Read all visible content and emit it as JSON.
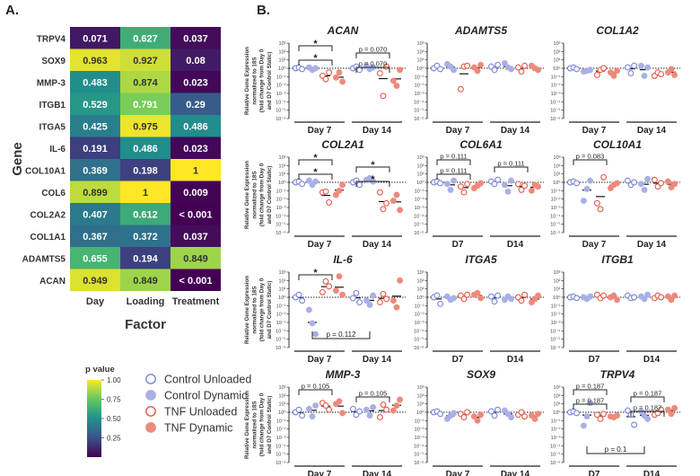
{
  "panel_a_label": "A.",
  "panel_b_label": "B.",
  "chart_data": [
    {
      "type": "heatmap",
      "panel": "A",
      "ylabel": "Gene",
      "xlabel": "Factor",
      "rows": [
        "TRPV4",
        "SOX9",
        "MMP-3",
        "ITGB1",
        "ITGA5",
        "IL-6",
        "COL10A1",
        "COL6",
        "COL2A2",
        "COL1A1",
        "ADAMTS5",
        "ACAN"
      ],
      "columns": [
        "Day",
        "Loading",
        "Treatment"
      ],
      "values": [
        [
          0.071,
          0.627,
          0.037
        ],
        [
          0.963,
          0.927,
          0.08
        ],
        [
          0.483,
          0.874,
          0.023
        ],
        [
          0.529,
          0.791,
          0.29
        ],
        [
          0.425,
          0.975,
          0.486
        ],
        [
          0.191,
          0.486,
          0.023
        ],
        [
          0.369,
          0.198,
          1
        ],
        [
          0.899,
          1,
          0.009
        ],
        [
          0.407,
          0.612,
          0.0005
        ],
        [
          0.367,
          0.372,
          0.037
        ],
        [
          0.655,
          0.194,
          0.849
        ],
        [
          0.949,
          0.849,
          0.0005
        ]
      ],
      "cell_labels": [
        [
          "0.071",
          "0.627",
          "0.037"
        ],
        [
          "0.963",
          "0.927",
          "0.08"
        ],
        [
          "0.483",
          "0.874",
          "0.023"
        ],
        [
          "0.529",
          "0.791",
          "0.29"
        ],
        [
          "0.425",
          "0.975",
          "0.486"
        ],
        [
          "0.191",
          "0.486",
          "0.023"
        ],
        [
          "0.369",
          "0.198",
          "1"
        ],
        [
          "0.899",
          "1",
          "0.009"
        ],
        [
          "0.407",
          "0.612",
          "< 0.001"
        ],
        [
          "0.367",
          "0.372",
          "0.037"
        ],
        [
          "0.655",
          "0.194",
          "0.849"
        ],
        [
          "0.949",
          "0.849",
          "< 0.001"
        ]
      ],
      "colorbar": {
        "title": "p value",
        "ticks": [
          "1.00",
          "0.75",
          "0.50",
          "0.25"
        ],
        "range": [
          0,
          1
        ]
      }
    },
    {
      "type": "scatter",
      "panel": "B",
      "ylabel_lines": [
        "Relative Gene Expression",
        "normalized to 18S",
        "(fold change from Day 0",
        "and D7 Control Static)"
      ],
      "y_scale": "log10",
      "y_range": [
        -6,
        3
      ],
      "y_tick_labels": [
        "10³",
        "10²",
        "10¹",
        "10⁰",
        "10⁻¹",
        "10⁻²",
        "10⁻³",
        "10⁻⁴",
        "10⁻⁵",
        "10⁻⁶"
      ],
      "legend": [
        {
          "name": "Control Unloaded",
          "color": "#7b83d6",
          "filled": false
        },
        {
          "name": "Control Dynamic",
          "color": "#a9b0e6",
          "filled": true
        },
        {
          "name": "TNF Unloaded",
          "color": "#e35a4a",
          "filled": false
        },
        {
          "name": "TNF Dynamic",
          "color": "#ee8a7c",
          "filled": true
        }
      ],
      "group_order": [
        "Control Unloaded",
        "Control Dynamic",
        "TNF Unloaded",
        "TNF Dynamic"
      ],
      "subplots": [
        {
          "gene": "ACAN",
          "timepoints": [
            "Day 7",
            "Day 14"
          ],
          "log10_values": [
            [
              [
                0,
                0.1,
                -0.1
              ],
              [
                0.1,
                -0.2,
                0
              ],
              [
                -0.9,
                -1.3,
                -0.5
              ],
              [
                -1.1,
                -0.5,
                -1.6
              ]
            ],
            [
              [
                0,
                0.2,
                -0.2
              ],
              [
                0.3,
                -0.1,
                0.1
              ],
              [
                -0.6,
                -3.3,
                0.2
              ],
              [
                -1.5,
                -2.1,
                -0.2
              ]
            ]
          ],
          "annotations": [
            {
              "text": "*"
            },
            {
              "text": "p = 0.070"
            },
            {
              "text": "*"
            },
            {
              "text": "p = 0.070"
            }
          ]
        },
        {
          "gene": "ADAMTS5",
          "timepoints": [
            "Day 7",
            "Day 14"
          ],
          "log10_values": [
            [
              [
                0,
                0.3,
                -0.1
              ],
              [
                0.5,
                0.2,
                -0.2
              ],
              [
                -2.5,
                0.2,
                0.3
              ],
              [
                0.1,
                -0.3,
                0.4
              ]
            ],
            [
              [
                0.2,
                -0.2,
                0.4
              ],
              [
                0.6,
                0.1,
                -0.1
              ],
              [
                0.1,
                -0.4,
                0.3
              ],
              [
                0.3,
                0,
                -0.2
              ]
            ]
          ],
          "annotations": []
        },
        {
          "gene": "COL1A2",
          "timepoints": [
            "Day 7",
            "Day 14"
          ],
          "log10_values": [
            [
              [
                0,
                0.1,
                -0.1
              ],
              [
                -0.4,
                -0.3,
                -0.2
              ],
              [
                -0.8,
                -0.2,
                0
              ],
              [
                -0.5,
                -0.9,
                -0.3
              ]
            ],
            [
              [
                0.1,
                -0.6,
                0.3
              ],
              [
                0.3,
                -0.9,
                0.1
              ],
              [
                -0.9,
                -0.5,
                -0.7
              ],
              [
                -0.5,
                -0.1,
                -0.8
              ]
            ]
          ],
          "annotations": []
        },
        {
          "gene": "COL2A1",
          "timepoints": [
            "Day 7",
            "Day 14"
          ],
          "log10_values": [
            [
              [
                0,
                0.1,
                -0.2
              ],
              [
                0.2,
                -0.3,
                0.1
              ],
              [
                -1.2,
                -1.1,
                -2.4
              ],
              [
                -1.5,
                -1,
                -0.3
              ]
            ],
            [
              [
                0,
                0.2,
                -0.3
              ],
              [
                0.3,
                0.5,
                0.1
              ],
              [
                -1.2,
                -3.2,
                -2.5
              ],
              [
                -2.2,
                -1.5,
                -3.3
              ]
            ]
          ],
          "annotations": [
            {
              "text": "*"
            },
            {
              "text": "*"
            },
            {
              "text": "*"
            },
            {
              "text": "*"
            }
          ]
        },
        {
          "gene": "COL6A1",
          "timepoints": [
            "D7",
            "D14"
          ],
          "log10_values": [
            [
              [
                0,
                0.1,
                -0.1
              ],
              [
                -0.2,
                -0.9,
                0.2
              ],
              [
                -0.5,
                -1.2,
                -0.2
              ],
              [
                -0.7,
                -0.4,
                -0.1
              ]
            ],
            [
              [
                0.1,
                -0.2,
                0.3
              ],
              [
                -0.3,
                -1.1,
                0.2
              ],
              [
                -0.2,
                -0.9,
                -0.4
              ],
              [
                -1,
                -0.3,
                -0.5
              ]
            ]
          ],
          "annotations": [
            {
              "text": "p = 0.111"
            },
            {
              "text": "p = 0.111"
            },
            {
              "text": "p = 0.111"
            }
          ]
        },
        {
          "gene": "COL10A1",
          "timepoints": [
            "Day 7",
            "Day 14"
          ],
          "log10_values": [
            [
              [
                0,
                0.1,
                -0.1
              ],
              [
                -2.2,
                -0.8,
                0.2
              ],
              [
                -2.5,
                -3.2,
                0.6
              ],
              [
                -0.7,
                -0.3,
                -0.1
              ]
            ],
            [
              [
                0.2,
                -0.3,
                0
              ],
              [
                -0.2,
                -0.9,
                0.4
              ],
              [
                0.3,
                -0.5,
                -0.1
              ],
              [
                0.1,
                -0.6,
                -0.2
              ]
            ]
          ],
          "annotations": [
            {
              "text": "p = 0.083"
            }
          ]
        },
        {
          "gene": "IL-6",
          "timepoints": [
            "Day 7",
            "Day 14"
          ],
          "log10_values": [
            [
              [
                0,
                0.3,
                -0.4
              ],
              [
                -1.5,
                -3.1,
                -4.4
              ],
              [
                0.6,
                1.9,
                1.3
              ],
              [
                0.8,
                2.5,
                0.3
              ]
            ],
            [
              [
                -0.1,
                0.5,
                -0.6
              ],
              [
                -0.4,
                -0.9,
                0.2
              ],
              [
                -0.6,
                0.4,
                -0.2
              ],
              [
                -0.4,
                -1.2,
                2
              ]
            ]
          ],
          "annotations": [
            {
              "text": "*"
            },
            {
              "text": "p = 0.112"
            }
          ]
        },
        {
          "gene": "ITGA5",
          "timepoints": [
            "D7",
            "D14"
          ],
          "log10_values": [
            [
              [
                0,
                0.2,
                -0.8
              ],
              [
                0.1,
                -0.3,
                -0.1
              ],
              [
                0.2,
                -0.2,
                0.3
              ],
              [
                0.3,
                0.5,
                -0.1
              ]
            ],
            [
              [
                0.1,
                -0.5,
                0.2
              ],
              [
                -0.3,
                0.1,
                -0.2
              ],
              [
                0,
                -0.4,
                0.3
              ],
              [
                -0.6,
                -0.2,
                0.2
              ]
            ]
          ],
          "annotations": []
        },
        {
          "gene": "ITGB1",
          "timepoints": [
            "D7",
            "D14"
          ],
          "log10_values": [
            [
              [
                0,
                0.1,
                -0.1
              ],
              [
                0,
                -0.2,
                0.1
              ],
              [
                0.3,
                -0.1,
                0.2
              ],
              [
                0,
                0.2,
                -0.3
              ]
            ],
            [
              [
                0.2,
                -0.1,
                0
              ],
              [
                0.1,
                -0.2,
                0.3
              ],
              [
                -0.1,
                0.2,
                0
              ],
              [
                0.1,
                -0.3,
                0.2
              ]
            ]
          ],
          "annotations": []
        },
        {
          "gene": "MMP-3",
          "timepoints": [
            "Day 7",
            "Day 14"
          ],
          "log10_values": [
            [
              [
                0,
                0.3,
                -0.4
              ],
              [
                0.4,
                -0.5,
                0.8
              ],
              [
                1.1,
                0.8,
                0.3
              ],
              [
                1,
                1.3,
                -0.1
              ]
            ],
            [
              [
                0.4,
                -0.3,
                0.1
              ],
              [
                0.3,
                -0.4,
                0.6
              ],
              [
                -0.6,
                0.9,
                0.3
              ],
              [
                0.2,
                0.8,
                1.5
              ]
            ]
          ],
          "annotations": [
            {
              "text": "p = 0.105"
            },
            {
              "text": "p = 0.105"
            }
          ]
        },
        {
          "gene": "SOX9",
          "timepoints": [
            "Day 7",
            "Day 14"
          ],
          "log10_values": [
            [
              [
                0,
                0.1,
                -0.2
              ],
              [
                -0.8,
                -0.4,
                -0.1
              ],
              [
                -0.2,
                -0.6,
                0
              ],
              [
                -0.5,
                -1,
                -0.3
              ]
            ],
            [
              [
                0.1,
                -0.4,
                0.3
              ],
              [
                0.2,
                -0.2,
                -0.6
              ],
              [
                -0.3,
                0,
                -0.5
              ],
              [
                -0.4,
                -0.8,
                -0.2
              ]
            ]
          ],
          "annotations": []
        },
        {
          "gene": "TRPV4",
          "timepoints": [
            "D7",
            "D14"
          ],
          "log10_values": [
            [
              [
                0,
                0.1,
                -0.1
              ],
              [
                -1.6,
                -0.5,
                1.1
              ],
              [
                -0.3,
                -0.8,
                -0.2
              ],
              [
                -0.5,
                -0.6,
                -0.4
              ]
            ],
            [
              [
                0.2,
                -0.3,
                -1.5
              ],
              [
                0.1,
                -0.4,
                -0.8
              ],
              [
                -0.3,
                -0.1,
                0.3
              ],
              [
                0.3,
                -0.2,
                0.5
              ]
            ]
          ],
          "annotations": [
            {
              "text": "p = 0.187"
            },
            {
              "text": "p = 0.187"
            },
            {
              "text": "p = 0.187"
            },
            {
              "text": "p = 0.187"
            },
            {
              "text": "p = 0.1"
            }
          ]
        }
      ]
    }
  ]
}
